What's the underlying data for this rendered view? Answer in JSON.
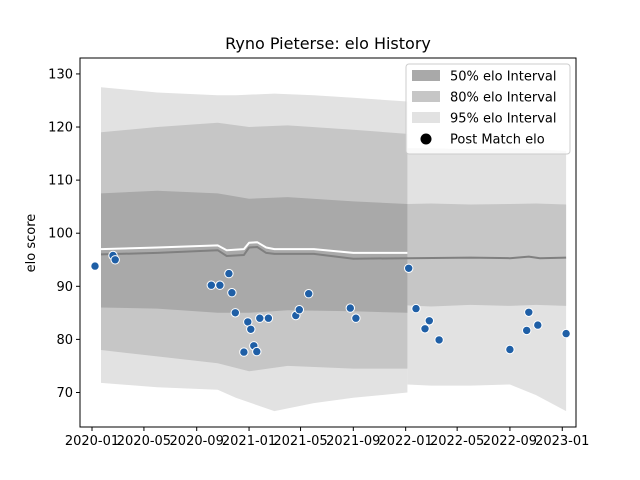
{
  "chart_data": {
    "type": "line",
    "title": "Ryno Pieterse: elo History",
    "xlabel": "",
    "ylabel": "elo score",
    "xlim": [
      "2019-12-04",
      "2023-02-02"
    ],
    "ylim": [
      63.5,
      133.0
    ],
    "x_ticks": [
      {
        "date": "2020-01-01",
        "label": "2020-01"
      },
      {
        "date": "2020-05-01",
        "label": "2020-05"
      },
      {
        "date": "2020-09-01",
        "label": "2020-09"
      },
      {
        "date": "2021-01-01",
        "label": "2021-01"
      },
      {
        "date": "2021-05-01",
        "label": "2021-05"
      },
      {
        "date": "2021-09-01",
        "label": "2021-09"
      },
      {
        "date": "2022-01-01",
        "label": "2022-01"
      },
      {
        "date": "2022-05-01",
        "label": "2022-05"
      },
      {
        "date": "2022-09-01",
        "label": "2022-09"
      },
      {
        "date": "2023-01-01",
        "label": "2023-01"
      }
    ],
    "y_ticks": [
      70,
      80,
      90,
      100,
      110,
      120,
      130
    ],
    "grid": false,
    "legend_position": "top-right",
    "legend": [
      {
        "label": "50% elo Interval",
        "kind": "band",
        "color": "#a9a9a9"
      },
      {
        "label": "80% elo Interval",
        "kind": "band",
        "color": "#c6c6c6"
      },
      {
        "label": "95% elo Interval",
        "kind": "band",
        "color": "#e2e2e2"
      },
      {
        "label": "Post Match elo",
        "kind": "marker",
        "color": "#000000"
      }
    ],
    "intervals": [
      {
        "name": "95% elo Interval",
        "color": "#e2e2e2",
        "segments": [
          {
            "x": [
              "2020-01-22",
              "2020-06-01",
              "2020-10-20",
              "2020-12-01",
              "2021-03-01",
              "2021-06-01",
              "2021-09-01",
              "2022-01-05"
            ],
            "upper": [
              127.5,
              126.5,
              126.0,
              126.0,
              126.3,
              126.0,
              125.5,
              124.8
            ],
            "lower": [
              71.8,
              71.0,
              70.5,
              69.0,
              66.5,
              68.0,
              69.0,
              70.0
            ]
          },
          {
            "x": [
              "2022-01-05",
              "2022-03-01",
              "2022-06-01",
              "2022-09-01",
              "2022-11-01",
              "2023-01-10"
            ],
            "upper": [
              116.0,
              116.0,
              115.8,
              116.0,
              115.8,
              115.5
            ],
            "lower": [
              71.5,
              71.3,
              71.3,
              71.5,
              69.5,
              66.5
            ]
          }
        ]
      },
      {
        "name": "80% elo Interval",
        "color": "#c6c6c6",
        "segments": [
          {
            "x": [
              "2020-01-22",
              "2020-06-01",
              "2020-10-20",
              "2021-01-01",
              "2021-04-01",
              "2021-09-01",
              "2022-01-05"
            ],
            "upper": [
              119.0,
              120.0,
              120.8,
              120.0,
              120.3,
              119.5,
              118.7
            ],
            "lower": [
              78.0,
              76.8,
              75.5,
              74.0,
              75.0,
              74.5,
              74.5
            ]
          },
          {
            "x": [
              "2022-01-05",
              "2022-03-01",
              "2022-06-01",
              "2022-09-01",
              "2022-11-01",
              "2023-01-10"
            ],
            "upper": [
              105.5,
              105.6,
              105.4,
              105.5,
              105.6,
              105.4
            ],
            "lower": [
              86.4,
              86.2,
              86.5,
              86.3,
              86.5,
              86.3
            ]
          }
        ]
      },
      {
        "name": "50% elo Interval",
        "color": "#a9a9a9",
        "segments": [
          {
            "x": [
              "2020-01-22",
              "2020-06-01",
              "2020-10-20",
              "2021-01-01",
              "2021-04-01",
              "2021-09-01",
              "2022-01-05"
            ],
            "upper": [
              107.5,
              108.0,
              107.5,
              106.5,
              106.8,
              106.0,
              105.5
            ],
            "lower": [
              86.0,
              85.8,
              85.0,
              85.0,
              85.5,
              85.3,
              85.0
            ]
          }
        ]
      }
    ],
    "expected_elo_line": {
      "color": "#ffffff",
      "x": [
        "2020-01-22",
        "2020-06-01",
        "2020-10-20",
        "2020-11-10",
        "2020-12-20",
        "2021-01-01",
        "2021-01-20",
        "2021-02-10",
        "2021-03-01",
        "2021-06-01",
        "2021-09-01",
        "2022-01-05"
      ],
      "y": [
        97.0,
        97.3,
        97.7,
        96.8,
        97.0,
        98.2,
        98.3,
        97.3,
        97.0,
        97.0,
        96.3,
        96.3
      ]
    },
    "mean_elo_line": {
      "color": "#808080",
      "x": [
        "2020-01-22",
        "2020-06-01",
        "2020-10-20",
        "2020-11-10",
        "2020-12-20",
        "2021-01-01",
        "2021-01-20",
        "2021-02-10",
        "2021-03-01",
        "2021-06-01",
        "2021-09-01",
        "2022-01-05",
        "2022-06-01",
        "2022-09-01",
        "2022-10-15",
        "2022-11-10",
        "2023-01-10"
      ],
      "y": [
        96.0,
        96.3,
        96.8,
        95.7,
        95.9,
        97.3,
        97.4,
        96.3,
        96.1,
        96.1,
        95.2,
        95.3,
        95.4,
        95.3,
        95.6,
        95.3,
        95.4
      ]
    },
    "series": [
      {
        "name": "Post Match elo",
        "color": "#1f5fa6",
        "x": [
          "2020-01-08",
          "2020-02-19",
          "2020-02-24",
          "2020-10-05",
          "2020-10-25",
          "2020-11-15",
          "2020-11-22",
          "2020-11-30",
          "2020-12-20",
          "2020-12-29",
          "2021-01-05",
          "2021-01-12",
          "2021-01-19",
          "2021-01-26",
          "2021-02-15",
          "2021-04-20",
          "2021-04-28",
          "2021-05-20",
          "2021-08-25",
          "2021-09-07",
          "2022-01-08",
          "2022-01-25",
          "2022-02-15",
          "2022-02-25",
          "2022-03-20",
          "2022-09-01",
          "2022-10-10",
          "2022-10-15",
          "2022-11-05",
          "2023-01-10"
        ],
        "y": [
          93.8,
          95.8,
          95.0,
          90.2,
          90.2,
          92.4,
          88.8,
          85.0,
          77.6,
          83.3,
          81.9,
          78.8,
          77.7,
          84.0,
          84.0,
          84.5,
          85.6,
          88.6,
          85.9,
          84.0,
          93.4,
          85.8,
          82.0,
          83.5,
          79.9,
          78.1,
          81.7,
          85.1,
          82.7,
          81.1
        ]
      }
    ]
  }
}
